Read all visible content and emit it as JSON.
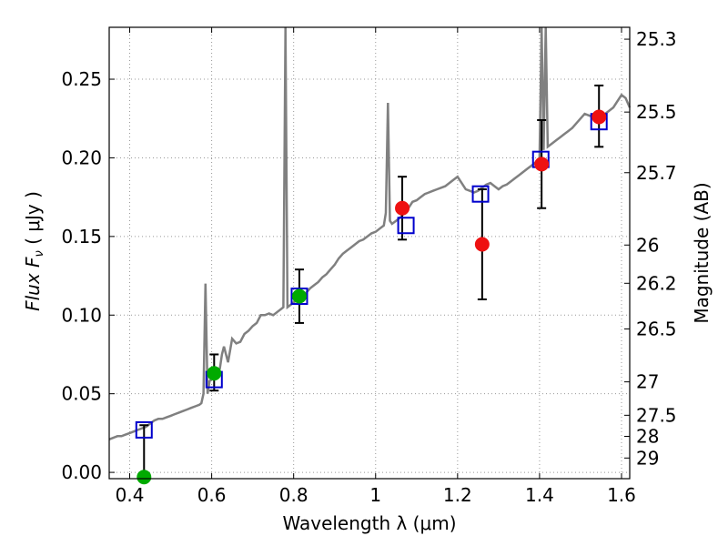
{
  "chart_data": {
    "type": "scatter",
    "xlabel": "Wavelength  λ (μm)",
    "ylabel": "Flux  F",
    "ylabel_sub": "ν",
    "ylabel_unit": "  ( μJy )",
    "y2label": "Magnitude (AB)",
    "xlim": [
      0.35,
      1.62
    ],
    "ylim": [
      -0.004,
      0.283
    ],
    "grid": true,
    "x_ticks": [
      0.4,
      0.6,
      0.8,
      1.0,
      1.2,
      1.4,
      1.6
    ],
    "x_tick_labels": [
      "0.4",
      "0.6",
      "0.8",
      "1",
      "1.2",
      "1.4",
      "1.6"
    ],
    "y_ticks": [
      0.0,
      0.05,
      0.1,
      0.15,
      0.2,
      0.25
    ],
    "y_tick_labels": [
      "0.00",
      "0.05",
      "0.10",
      "0.15",
      "0.20",
      "0.25"
    ],
    "mag_ticks": [
      25.3,
      25.5,
      25.7,
      26,
      26.2,
      26.5,
      27,
      27.5,
      28,
      29
    ],
    "mag_tick_labels": [
      "25.3",
      "25.5",
      "25.7",
      "26",
      "26.2",
      "26.5",
      "27",
      "27.5",
      "28",
      "29"
    ],
    "colors": {
      "spectrum": "#808080",
      "model_box": "#0000cc",
      "optical_point": "#00aa00",
      "nir_point": "#ee1111",
      "errorbar": "#000000",
      "grid": "#999999"
    },
    "spectrum": [
      [
        0.35,
        0.021
      ],
      [
        0.36,
        0.022
      ],
      [
        0.37,
        0.023
      ],
      [
        0.38,
        0.023
      ],
      [
        0.39,
        0.024
      ],
      [
        0.4,
        0.025
      ],
      [
        0.41,
        0.026
      ],
      [
        0.42,
        0.027
      ],
      [
        0.43,
        0.028
      ],
      [
        0.44,
        0.029
      ],
      [
        0.45,
        0.031
      ],
      [
        0.46,
        0.033
      ],
      [
        0.47,
        0.034
      ],
      [
        0.48,
        0.034
      ],
      [
        0.49,
        0.035
      ],
      [
        0.5,
        0.036
      ],
      [
        0.51,
        0.037
      ],
      [
        0.52,
        0.038
      ],
      [
        0.53,
        0.039
      ],
      [
        0.54,
        0.04
      ],
      [
        0.55,
        0.041
      ],
      [
        0.56,
        0.042
      ],
      [
        0.57,
        0.043
      ],
      [
        0.575,
        0.044
      ],
      [
        0.58,
        0.05
      ],
      [
        0.585,
        0.12
      ],
      [
        0.59,
        0.05
      ],
      [
        0.595,
        0.058
      ],
      [
        0.6,
        0.06
      ],
      [
        0.61,
        0.064
      ],
      [
        0.62,
        0.066
      ],
      [
        0.625,
        0.075
      ],
      [
        0.63,
        0.08
      ],
      [
        0.64,
        0.07
      ],
      [
        0.65,
        0.085
      ],
      [
        0.66,
        0.082
      ],
      [
        0.67,
        0.083
      ],
      [
        0.68,
        0.088
      ],
      [
        0.69,
        0.09
      ],
      [
        0.7,
        0.093
      ],
      [
        0.71,
        0.095
      ],
      [
        0.72,
        0.1
      ],
      [
        0.73,
        0.1
      ],
      [
        0.74,
        0.101
      ],
      [
        0.75,
        0.1
      ],
      [
        0.76,
        0.102
      ],
      [
        0.77,
        0.104
      ],
      [
        0.775,
        0.105
      ],
      [
        0.78,
        0.283
      ],
      [
        0.785,
        0.105
      ],
      [
        0.79,
        0.106
      ],
      [
        0.8,
        0.108
      ],
      [
        0.81,
        0.11
      ],
      [
        0.82,
        0.112
      ],
      [
        0.83,
        0.114
      ],
      [
        0.84,
        0.117
      ],
      [
        0.85,
        0.119
      ],
      [
        0.86,
        0.121
      ],
      [
        0.87,
        0.124
      ],
      [
        0.88,
        0.126
      ],
      [
        0.89,
        0.129
      ],
      [
        0.9,
        0.132
      ],
      [
        0.91,
        0.136
      ],
      [
        0.92,
        0.139
      ],
      [
        0.93,
        0.141
      ],
      [
        0.94,
        0.143
      ],
      [
        0.95,
        0.145
      ],
      [
        0.96,
        0.147
      ],
      [
        0.97,
        0.148
      ],
      [
        0.98,
        0.15
      ],
      [
        0.99,
        0.152
      ],
      [
        1.0,
        0.153
      ],
      [
        1.01,
        0.155
      ],
      [
        1.02,
        0.157
      ],
      [
        1.025,
        0.165
      ],
      [
        1.03,
        0.235
      ],
      [
        1.035,
        0.16
      ],
      [
        1.04,
        0.158
      ],
      [
        1.05,
        0.16
      ],
      [
        1.06,
        0.162
      ],
      [
        1.07,
        0.165
      ],
      [
        1.08,
        0.168
      ],
      [
        1.09,
        0.172
      ],
      [
        1.1,
        0.173
      ],
      [
        1.11,
        0.175
      ],
      [
        1.12,
        0.177
      ],
      [
        1.13,
        0.178
      ],
      [
        1.14,
        0.179
      ],
      [
        1.15,
        0.18
      ],
      [
        1.16,
        0.181
      ],
      [
        1.17,
        0.182
      ],
      [
        1.18,
        0.184
      ],
      [
        1.19,
        0.186
      ],
      [
        1.2,
        0.188
      ],
      [
        1.21,
        0.184
      ],
      [
        1.22,
        0.18
      ],
      [
        1.23,
        0.179
      ],
      [
        1.24,
        0.178
      ],
      [
        1.25,
        0.179
      ],
      [
        1.26,
        0.181
      ],
      [
        1.27,
        0.183
      ],
      [
        1.28,
        0.184
      ],
      [
        1.29,
        0.182
      ],
      [
        1.3,
        0.18
      ],
      [
        1.31,
        0.182
      ],
      [
        1.32,
        0.183
      ],
      [
        1.33,
        0.185
      ],
      [
        1.34,
        0.187
      ],
      [
        1.35,
        0.189
      ],
      [
        1.36,
        0.191
      ],
      [
        1.37,
        0.193
      ],
      [
        1.38,
        0.195
      ],
      [
        1.39,
        0.197
      ],
      [
        1.4,
        0.2
      ],
      [
        1.405,
        0.283
      ],
      [
        1.41,
        0.205
      ],
      [
        1.415,
        0.283
      ],
      [
        1.42,
        0.207
      ],
      [
        1.43,
        0.209
      ],
      [
        1.44,
        0.211
      ],
      [
        1.45,
        0.213
      ],
      [
        1.46,
        0.215
      ],
      [
        1.47,
        0.217
      ],
      [
        1.48,
        0.219
      ],
      [
        1.49,
        0.222
      ],
      [
        1.5,
        0.225
      ],
      [
        1.51,
        0.228
      ],
      [
        1.52,
        0.227
      ],
      [
        1.53,
        0.226
      ],
      [
        1.54,
        0.225
      ],
      [
        1.55,
        0.226
      ],
      [
        1.56,
        0.228
      ],
      [
        1.57,
        0.23
      ],
      [
        1.58,
        0.232
      ],
      [
        1.59,
        0.236
      ],
      [
        1.6,
        0.24
      ],
      [
        1.61,
        0.238
      ],
      [
        1.62,
        0.232
      ]
    ],
    "model_points": [
      {
        "x": 0.435,
        "y": 0.027
      },
      {
        "x": 0.606,
        "y": 0.059
      },
      {
        "x": 0.814,
        "y": 0.112
      },
      {
        "x": 1.074,
        "y": 0.157
      },
      {
        "x": 1.256,
        "y": 0.177
      },
      {
        "x": 1.403,
        "y": 0.199
      },
      {
        "x": 1.545,
        "y": 0.223
      }
    ],
    "observed": [
      {
        "x": 0.435,
        "y": -0.003,
        "err_low": -0.004,
        "err_high": 0.03,
        "band": "optical"
      },
      {
        "x": 0.606,
        "y": 0.063,
        "err_low": 0.052,
        "err_high": 0.075,
        "band": "optical"
      },
      {
        "x": 0.814,
        "y": 0.112,
        "err_low": 0.095,
        "err_high": 0.129,
        "band": "optical"
      },
      {
        "x": 1.065,
        "y": 0.168,
        "err_low": 0.148,
        "err_high": 0.188,
        "band": "nir"
      },
      {
        "x": 1.26,
        "y": 0.145,
        "err_low": 0.11,
        "err_high": 0.18,
        "band": "nir"
      },
      {
        "x": 1.405,
        "y": 0.196,
        "err_low": 0.168,
        "err_high": 0.224,
        "band": "nir"
      },
      {
        "x": 1.545,
        "y": 0.226,
        "err_low": 0.207,
        "err_high": 0.246,
        "band": "nir"
      }
    ]
  }
}
